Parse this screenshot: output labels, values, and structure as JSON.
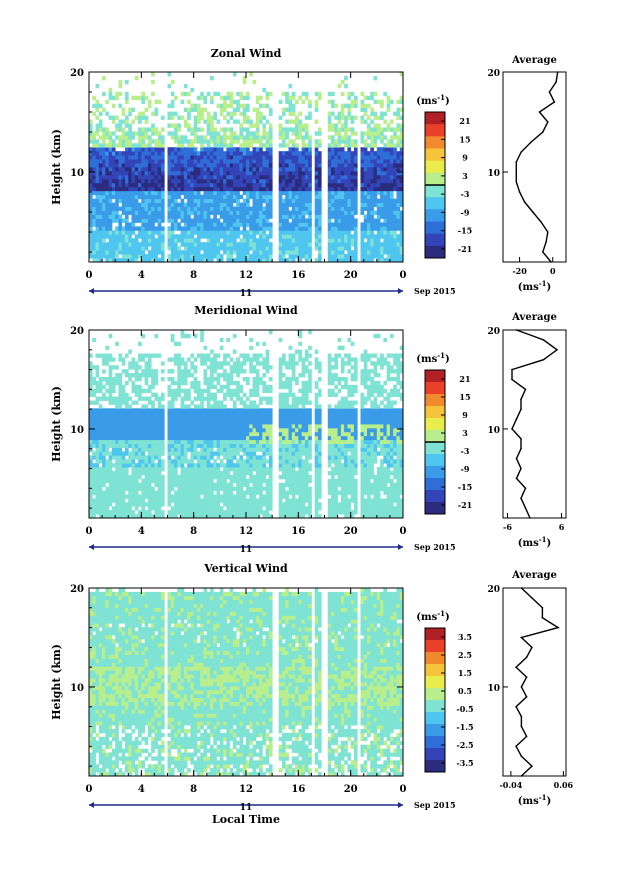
{
  "chart_data": [
    {
      "type": "heatmap",
      "title": "Zonal Wind",
      "ylabel": "Height (km)",
      "ylim": [
        1,
        20
      ],
      "yticks": [
        "10",
        "20"
      ],
      "xlabel": "",
      "xticks": [
        "0",
        "4",
        "8",
        "12",
        "16",
        "20",
        "0"
      ],
      "xlim": [
        0,
        24
      ],
      "day_label": "11",
      "date_label": "Sep 2015",
      "colorbar": {
        "unit": "(ms",
        "unit_exp": "-1",
        "unit_close": ")",
        "ticks": [
          "21",
          "15",
          "9",
          "3",
          "-3",
          "-9",
          "-15",
          "-21"
        ],
        "range": [
          -24,
          24
        ],
        "zero_line": 0
      },
      "profile": {
        "title": "Average",
        "xticks": [
          "-20",
          "0"
        ],
        "xlim": [
          -30,
          8
        ],
        "xunit": "(ms",
        "xunit_exp": "-1",
        "xunit_close": ")",
        "yticks": [
          "10",
          "20"
        ],
        "height_km": [
          1,
          2,
          3,
          4,
          5,
          6,
          7,
          8,
          9,
          10,
          11,
          12,
          13,
          14,
          15,
          16,
          17,
          18,
          19,
          20
        ],
        "values": [
          -1,
          -6,
          -4,
          -3,
          -7,
          -12,
          -17,
          -20,
          -22,
          -22,
          -22,
          -19,
          -13,
          -6,
          -3,
          -8,
          1,
          -2,
          2,
          3
        ]
      }
    },
    {
      "type": "heatmap",
      "title": "Meridional Wind",
      "ylabel": "Height (km)",
      "ylim": [
        1,
        20
      ],
      "yticks": [
        "10",
        "20"
      ],
      "xlabel": "",
      "xticks": [
        "0",
        "4",
        "8",
        "12",
        "16",
        "20",
        "0"
      ],
      "xlim": [
        0,
        24
      ],
      "day_label": "11",
      "date_label": "Sep 2015",
      "colorbar": {
        "unit": "(ms",
        "unit_exp": "-1",
        "unit_close": ")",
        "ticks": [
          "21",
          "15",
          "9",
          "3",
          "-3",
          "-9",
          "-15",
          "-21"
        ],
        "range": [
          -24,
          24
        ],
        "zero_line": 0
      },
      "profile": {
        "title": "Average",
        "xticks": [
          "-6",
          "6"
        ],
        "xlim": [
          -7,
          7
        ],
        "xunit": "(ms",
        "xunit_exp": "-1",
        "xunit_close": ")",
        "yticks": [
          "10",
          "20"
        ],
        "height_km": [
          1,
          2,
          3,
          4,
          5,
          6,
          7,
          8,
          9,
          10,
          11,
          12,
          13,
          14,
          15,
          16,
          17,
          18,
          19,
          20
        ],
        "values": [
          -1,
          -2,
          -3,
          -2,
          -4,
          -3,
          -4,
          -3,
          -3,
          -5,
          -4,
          -3,
          -3,
          -2,
          -5,
          -5,
          2,
          5,
          2,
          -4
        ]
      }
    },
    {
      "type": "heatmap",
      "title": "Vertical Wind",
      "ylabel": "Height (km)",
      "ylim": [
        1,
        20
      ],
      "yticks": [
        "10",
        "20"
      ],
      "xlabel": "Local Time",
      "xticks": [
        "0",
        "4",
        "8",
        "12",
        "16",
        "20",
        "0"
      ],
      "xlim": [
        0,
        24
      ],
      "day_label": "11",
      "date_label": "Sep 2015",
      "colorbar": {
        "unit": "(ms",
        "unit_exp": "-1",
        "unit_close": ")",
        "ticks": [
          "3.5",
          "2.5",
          "1.5",
          "0.5",
          "-0.5",
          "-1.5",
          "-2.5",
          "-3.5"
        ],
        "range": [
          -4,
          4
        ],
        "zero_line": null
      },
      "profile": {
        "title": "Average",
        "xticks": [
          "-0.04",
          "0.06"
        ],
        "xlim": [
          -0.055,
          0.065
        ],
        "xunit": "(ms",
        "xunit_exp": "-1",
        "xunit_close": ")",
        "yticks": [
          "10",
          "20"
        ],
        "height_km": [
          1,
          2,
          3,
          4,
          5,
          6,
          7,
          8,
          9,
          10,
          11,
          12,
          13,
          14,
          15,
          16,
          17,
          18,
          19,
          20
        ],
        "values": [
          -0.02,
          0.0,
          -0.02,
          -0.03,
          -0.01,
          -0.02,
          -0.02,
          -0.03,
          -0.01,
          -0.02,
          -0.01,
          -0.03,
          -0.01,
          0.0,
          -0.02,
          0.05,
          0.02,
          0.02,
          0.0,
          -0.02
        ]
      }
    }
  ],
  "colors": {
    "scale": [
      "#2b2c7e",
      "#3344b8",
      "#2f6ed8",
      "#3a9be8",
      "#4fc6f0",
      "#7fe3d4",
      "#b8ee8c",
      "#e8ec4c",
      "#f6c43a",
      "#f08a2c",
      "#e8402a",
      "#b02024"
    ]
  }
}
